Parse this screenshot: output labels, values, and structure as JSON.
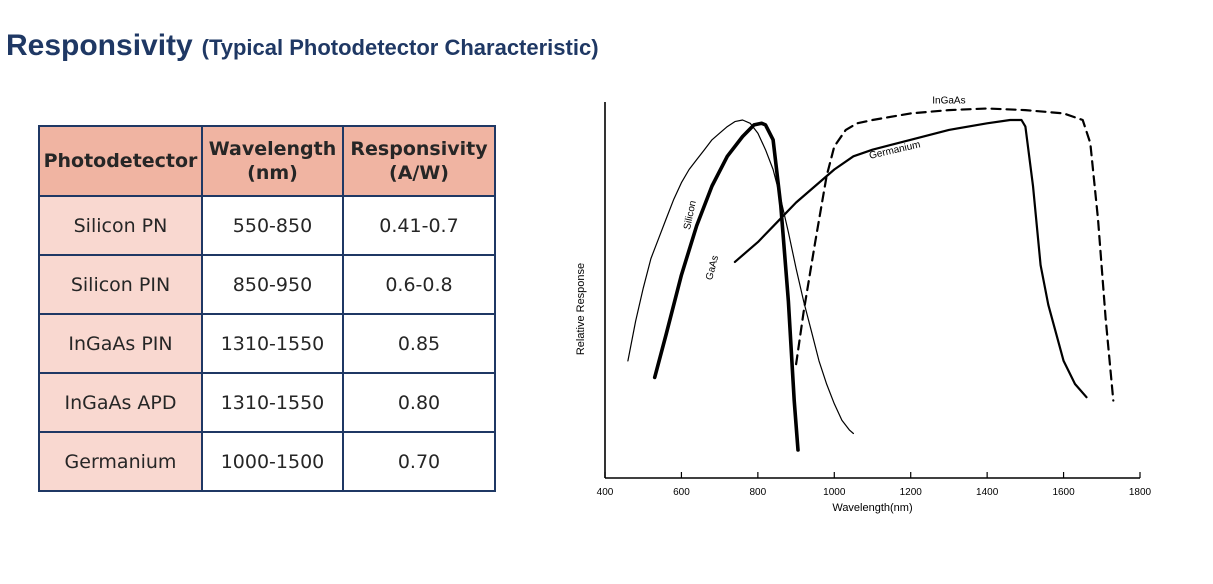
{
  "title": {
    "main": "Responsivity",
    "sub": "(Typical Photodetector Characteristic)"
  },
  "table": {
    "headers": [
      {
        "line1": "Photodetector",
        "line2": ""
      },
      {
        "line1": "Wavelength",
        "line2": "(nm)"
      },
      {
        "line1": "Responsivity",
        "line2": "(A/W)"
      }
    ],
    "rows": [
      [
        "Silicon PN",
        "550-850",
        "0.41-0.7"
      ],
      [
        "Silicon PIN",
        "850-950",
        "0.6-0.8"
      ],
      [
        "InGaAs PIN",
        "1310-1550",
        "0.85"
      ],
      [
        "InGaAs APD",
        "1310-1550",
        "0.80"
      ],
      [
        "Germanium",
        "1000-1500",
        "0.70"
      ]
    ]
  },
  "chart_data": {
    "type": "line",
    "xlabel": "Wavelength(nm)",
    "ylabel": "Relative Response",
    "xlim": [
      400,
      1800
    ],
    "ylim": [
      0,
      1
    ],
    "xticks": [
      400,
      600,
      800,
      1000,
      1200,
      1400,
      1600,
      1800
    ],
    "series": [
      {
        "name": "Silicon",
        "style": "thin",
        "label_at": {
          "x": 630,
          "y": 0.71
        },
        "label_rotate": -78,
        "points": [
          [
            460,
            0.27
          ],
          [
            480,
            0.39
          ],
          [
            500,
            0.49
          ],
          [
            520,
            0.58
          ],
          [
            540,
            0.64
          ],
          [
            560,
            0.7
          ],
          [
            580,
            0.76
          ],
          [
            600,
            0.81
          ],
          [
            620,
            0.85
          ],
          [
            640,
            0.88
          ],
          [
            660,
            0.91
          ],
          [
            680,
            0.94
          ],
          [
            700,
            0.96
          ],
          [
            720,
            0.98
          ],
          [
            740,
            0.995
          ],
          [
            760,
            1.0
          ],
          [
            780,
            0.99
          ],
          [
            800,
            0.96
          ],
          [
            820,
            0.91
          ],
          [
            840,
            0.85
          ],
          [
            860,
            0.76
          ],
          [
            880,
            0.66
          ],
          [
            900,
            0.55
          ],
          [
            920,
            0.45
          ],
          [
            940,
            0.36
          ],
          [
            960,
            0.27
          ],
          [
            980,
            0.2
          ],
          [
            1000,
            0.14
          ],
          [
            1020,
            0.09
          ],
          [
            1040,
            0.06
          ],
          [
            1050,
            0.05
          ]
        ]
      },
      {
        "name": "GaAs",
        "style": "thick",
        "label_at": {
          "x": 688,
          "y": 0.55
        },
        "label_rotate": -75,
        "points": [
          [
            530,
            0.22
          ],
          [
            560,
            0.35
          ],
          [
            600,
            0.53
          ],
          [
            640,
            0.68
          ],
          [
            680,
            0.8
          ],
          [
            720,
            0.89
          ],
          [
            760,
            0.95
          ],
          [
            790,
            0.985
          ],
          [
            810,
            0.99
          ],
          [
            820,
            0.985
          ],
          [
            840,
            0.94
          ],
          [
            860,
            0.74
          ],
          [
            880,
            0.45
          ],
          [
            895,
            0.15
          ],
          [
            905,
            0.0
          ]
        ]
      },
      {
        "name": "Germanium",
        "style": "medium",
        "label_at": {
          "x": 1160,
          "y": 0.9
        },
        "label_rotate": -13,
        "points": [
          [
            740,
            0.57
          ],
          [
            800,
            0.63
          ],
          [
            850,
            0.69
          ],
          [
            900,
            0.75
          ],
          [
            950,
            0.8
          ],
          [
            1000,
            0.85
          ],
          [
            1050,
            0.89
          ],
          [
            1100,
            0.91
          ],
          [
            1200,
            0.94
          ],
          [
            1300,
            0.97
          ],
          [
            1400,
            0.99
          ],
          [
            1460,
            1.0
          ],
          [
            1490,
            1.0
          ],
          [
            1500,
            0.98
          ],
          [
            1520,
            0.8
          ],
          [
            1540,
            0.56
          ],
          [
            1560,
            0.44
          ],
          [
            1600,
            0.27
          ],
          [
            1630,
            0.2
          ],
          [
            1660,
            0.16
          ]
        ]
      },
      {
        "name": "InGaAs",
        "style": "dashed",
        "label_at": {
          "x": 1300,
          "y": 1.05
        },
        "label_rotate": 0,
        "points": [
          [
            900,
            0.26
          ],
          [
            920,
            0.42
          ],
          [
            950,
            0.63
          ],
          [
            980,
            0.83
          ],
          [
            1000,
            0.92
          ],
          [
            1030,
            0.97
          ],
          [
            1060,
            0.99
          ],
          [
            1100,
            1.0
          ],
          [
            1200,
            1.02
          ],
          [
            1300,
            1.03
          ],
          [
            1400,
            1.035
          ],
          [
            1500,
            1.03
          ],
          [
            1600,
            1.02
          ],
          [
            1650,
            1.0
          ],
          [
            1670,
            0.93
          ],
          [
            1690,
            0.7
          ],
          [
            1710,
            0.4
          ],
          [
            1730,
            0.15
          ]
        ]
      }
    ]
  }
}
